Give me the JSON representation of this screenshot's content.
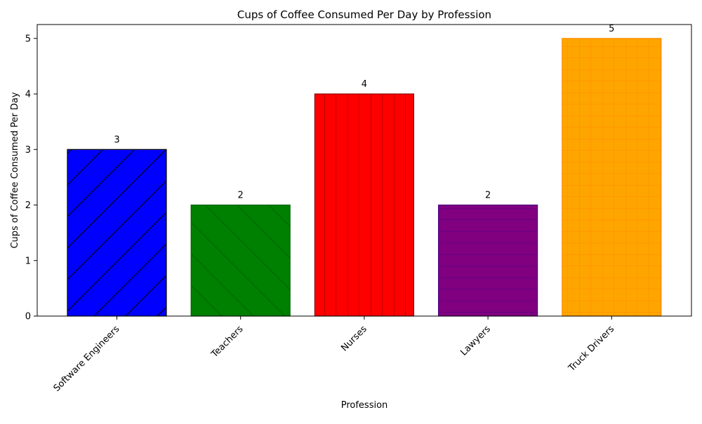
{
  "chart_data": {
    "type": "bar",
    "title": "Cups of Coffee Consumed Per Day by Profession",
    "xlabel": "Profession",
    "ylabel": "Cups of Coffee Consumed Per Day",
    "categories": [
      "Software Engineers",
      "Teachers",
      "Nurses",
      "Lawyers",
      "Truck Drivers"
    ],
    "values": [
      3,
      2,
      4,
      2,
      5
    ],
    "colors": [
      "#0000ff",
      "#008000",
      "#ff0000",
      "#800080",
      "#ffa500"
    ],
    "hatches": [
      "diagonal-up",
      "diagonal-down",
      "vertical",
      "horizontal",
      "grid"
    ],
    "ylim": [
      0,
      5.25
    ],
    "yticks": [
      0,
      1,
      2,
      3,
      4,
      5
    ],
    "grid": false,
    "legend": "none"
  }
}
